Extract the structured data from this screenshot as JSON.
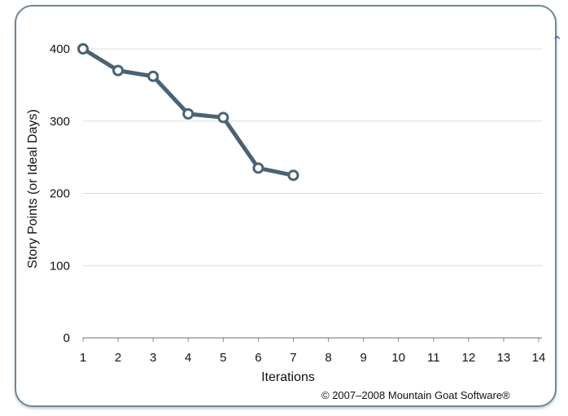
{
  "chart_data": {
    "type": "line",
    "title": "",
    "xlabel": "Iterations",
    "ylabel": "Story Points (or Ideal Days)",
    "x_ticks": [
      "1",
      "2",
      "3",
      "4",
      "5",
      "6",
      "7",
      "8",
      "9",
      "10",
      "11",
      "12",
      "13",
      "14"
    ],
    "y_ticks": [
      0,
      100,
      200,
      300,
      400
    ],
    "xlim": [
      1,
      14
    ],
    "ylim": [
      0,
      400
    ],
    "grid": true,
    "legend": "none",
    "series": [
      {
        "x": [
          1,
          2,
          3,
          4,
          5,
          6,
          7
        ],
        "values": [
          400,
          370,
          362,
          310,
          305,
          235,
          225
        ],
        "color": "#4b6272"
      }
    ]
  },
  "copyright": "© 2007–2008 Mountain Goat Software®",
  "colors": {
    "line": "#4b6272",
    "grid": "#dcdcdc",
    "frame": "#6f8797",
    "marker_fill": "#ffffff"
  }
}
